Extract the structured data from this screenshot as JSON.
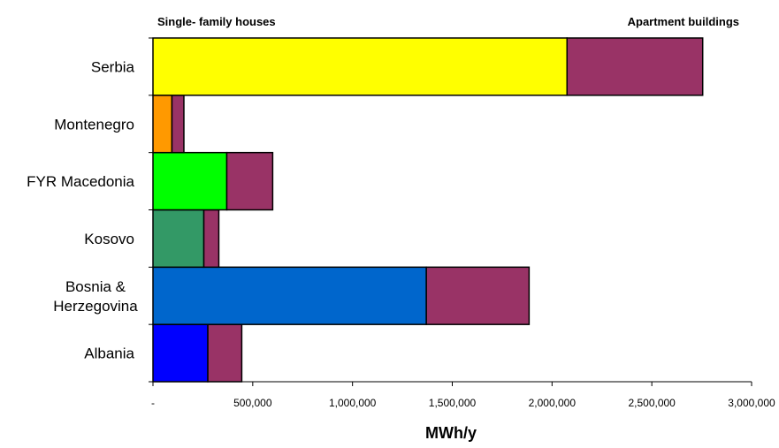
{
  "chart_data": {
    "type": "bar",
    "orientation": "horizontal",
    "stacked": true,
    "title": "",
    "xlabel": "MWh/y",
    "ylabel": "",
    "xlim": [
      0,
      3000000
    ],
    "x_ticks": [
      0,
      500000,
      1000000,
      1500000,
      2000000,
      2500000,
      3000000
    ],
    "x_tick_labels": [
      "-",
      "500,000",
      "1,000,000",
      "1,500,000",
      "2,000,000",
      "2,500,000",
      "3,000,000"
    ],
    "grid": false,
    "categories": [
      "Albania",
      "Bosnia & Herzegovina",
      "Kosovo",
      "FYR Macedonia",
      "Montenegro",
      "Serbia"
    ],
    "series": [
      {
        "name": "Single- family houses",
        "values": [
          275000,
          1370000,
          255000,
          370000,
          95000,
          2075000
        ],
        "colors": [
          "#0000ff",
          "#0066cc",
          "#339966",
          "#00ff00",
          "#ff9900",
          "#ffff00"
        ]
      },
      {
        "name": "Apartment buildings",
        "values": [
          170000,
          515000,
          75000,
          230000,
          60000,
          680000
        ],
        "color": "#993366"
      }
    ],
    "legend_position": "top"
  }
}
